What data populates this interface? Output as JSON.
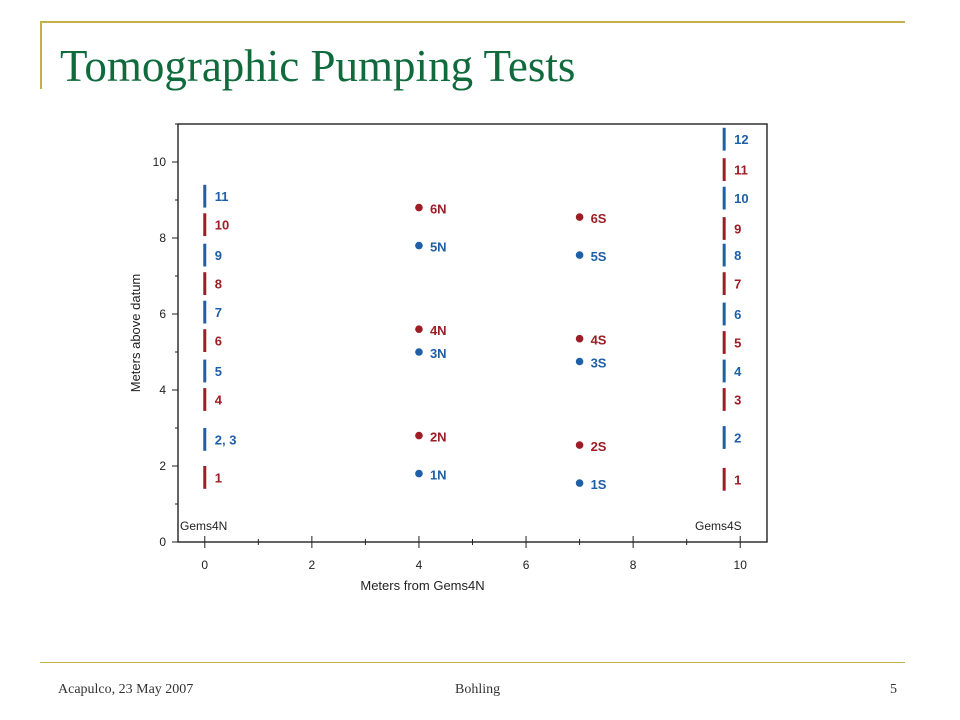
{
  "slide": {
    "title": "Tomographic Pumping Tests",
    "footer_left": "Acapulco, 23 May 2007",
    "footer_center": "Bohling",
    "footer_right": "5"
  },
  "colors": {
    "title": "#0f6a3c",
    "frame": "#c2b04a",
    "blue": "#1f5fa8",
    "red": "#9c1d25"
  },
  "chart_data": {
    "type": "scatter",
    "xlabel": "Meters from Gems4N",
    "ylabel": "Meters above datum",
    "xlim": [
      -0.5,
      10.5
    ],
    "ylim": [
      0,
      11
    ],
    "xticks": [
      0,
      2,
      4,
      6,
      8,
      10
    ],
    "yticks": [
      0,
      2,
      4,
      6,
      8,
      10
    ],
    "grid": false,
    "wells": [
      {
        "name": "Gems4N",
        "x": 0,
        "intervals": [
          {
            "label": "1",
            "y_bottom": 1.4,
            "y_top": 2.0,
            "color": "red"
          },
          {
            "label": "2, 3",
            "y_bottom": 2.4,
            "y_top": 3.0,
            "color": "blue"
          },
          {
            "label": "4",
            "y_bottom": 3.45,
            "y_top": 4.05,
            "color": "red"
          },
          {
            "label": "5",
            "y_bottom": 4.2,
            "y_top": 4.8,
            "color": "blue"
          },
          {
            "label": "6",
            "y_bottom": 5.0,
            "y_top": 5.6,
            "color": "red"
          },
          {
            "label": "7",
            "y_bottom": 5.75,
            "y_top": 6.35,
            "color": "blue"
          },
          {
            "label": "8",
            "y_bottom": 6.5,
            "y_top": 7.1,
            "color": "red"
          },
          {
            "label": "9",
            "y_bottom": 7.25,
            "y_top": 7.85,
            "color": "blue"
          },
          {
            "label": "10",
            "y_bottom": 8.05,
            "y_top": 8.65,
            "color": "red"
          },
          {
            "label": "11",
            "y_bottom": 8.8,
            "y_top": 9.4,
            "color": "blue"
          }
        ]
      },
      {
        "name": "Gems4S",
        "x": 9.7,
        "intervals": [
          {
            "label": "1",
            "y_bottom": 1.35,
            "y_top": 1.95,
            "color": "red"
          },
          {
            "label": "2",
            "y_bottom": 2.45,
            "y_top": 3.05,
            "color": "blue"
          },
          {
            "label": "3",
            "y_bottom": 3.45,
            "y_top": 4.05,
            "color": "red"
          },
          {
            "label": "4",
            "y_bottom": 4.2,
            "y_top": 4.8,
            "color": "blue"
          },
          {
            "label": "5",
            "y_bottom": 4.95,
            "y_top": 5.55,
            "color": "red"
          },
          {
            "label": "6",
            "y_bottom": 5.7,
            "y_top": 6.3,
            "color": "blue"
          },
          {
            "label": "7",
            "y_bottom": 6.5,
            "y_top": 7.1,
            "color": "red"
          },
          {
            "label": "8",
            "y_bottom": 7.25,
            "y_top": 7.85,
            "color": "blue"
          },
          {
            "label": "9",
            "y_bottom": 7.95,
            "y_top": 8.55,
            "color": "red"
          },
          {
            "label": "10",
            "y_bottom": 8.75,
            "y_top": 9.35,
            "color": "blue"
          },
          {
            "label": "11",
            "y_bottom": 9.5,
            "y_top": 10.1,
            "color": "red"
          },
          {
            "label": "12",
            "y_bottom": 10.3,
            "y_top": 10.9,
            "color": "blue"
          }
        ]
      }
    ],
    "points": [
      {
        "label": "1N",
        "x": 4,
        "y": 1.8,
        "color": "blue"
      },
      {
        "label": "2N",
        "x": 4,
        "y": 2.8,
        "color": "red"
      },
      {
        "label": "3N",
        "x": 4,
        "y": 5.0,
        "color": "blue"
      },
      {
        "label": "4N",
        "x": 4,
        "y": 5.6,
        "color": "red"
      },
      {
        "label": "5N",
        "x": 4,
        "y": 7.8,
        "color": "blue"
      },
      {
        "label": "6N",
        "x": 4,
        "y": 8.8,
        "color": "red"
      },
      {
        "label": "1S",
        "x": 7,
        "y": 1.55,
        "color": "blue"
      },
      {
        "label": "2S",
        "x": 7,
        "y": 2.55,
        "color": "red"
      },
      {
        "label": "3S",
        "x": 7,
        "y": 4.75,
        "color": "blue"
      },
      {
        "label": "4S",
        "x": 7,
        "y": 5.35,
        "color": "red"
      },
      {
        "label": "5S",
        "x": 7,
        "y": 7.55,
        "color": "blue"
      },
      {
        "label": "6S",
        "x": 7,
        "y": 8.55,
        "color": "red"
      }
    ]
  }
}
